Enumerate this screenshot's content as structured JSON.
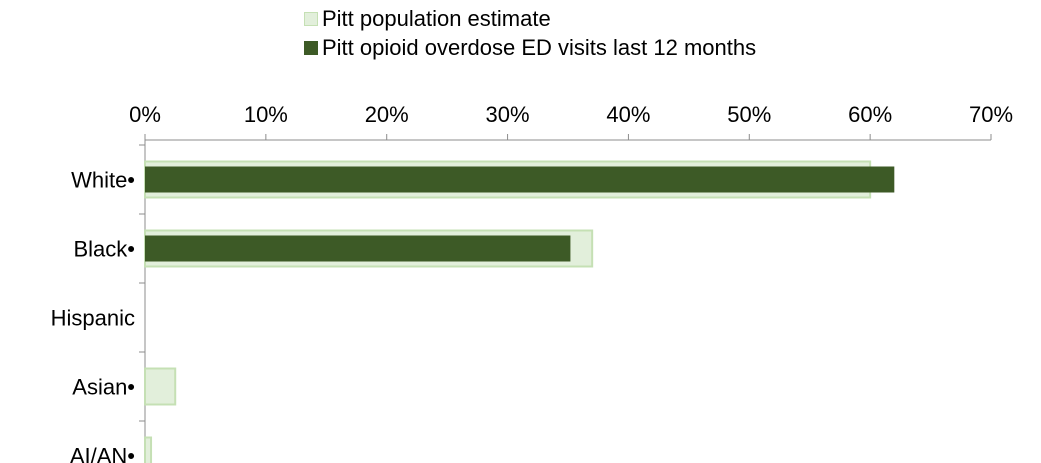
{
  "chart_data": {
    "type": "bar",
    "orientation": "horizontal",
    "categories": [
      "White•",
      "Black•",
      "Hispanic",
      "Asian•",
      "AI/AN•"
    ],
    "series": [
      {
        "name": "Pitt population estimate",
        "values": [
          60,
          37,
          0,
          2.5,
          0.5
        ],
        "fill": "#e2efdb",
        "stroke": "#c5e0b4"
      },
      {
        "name": "Pitt opioid overdose ED visits last 12 months",
        "values": [
          62,
          35.2,
          0,
          0,
          0
        ],
        "fill": "#3d5a26"
      }
    ],
    "x_axis": {
      "min": 0,
      "max": 70,
      "step": 10,
      "tick_labels": [
        "0%",
        "10%",
        "20%",
        "30%",
        "40%",
        "50%",
        "60%",
        "70%"
      ],
      "position": "top"
    },
    "title": "",
    "xlabel": "",
    "ylabel": "",
    "legend_position": "top",
    "grid": false
  }
}
